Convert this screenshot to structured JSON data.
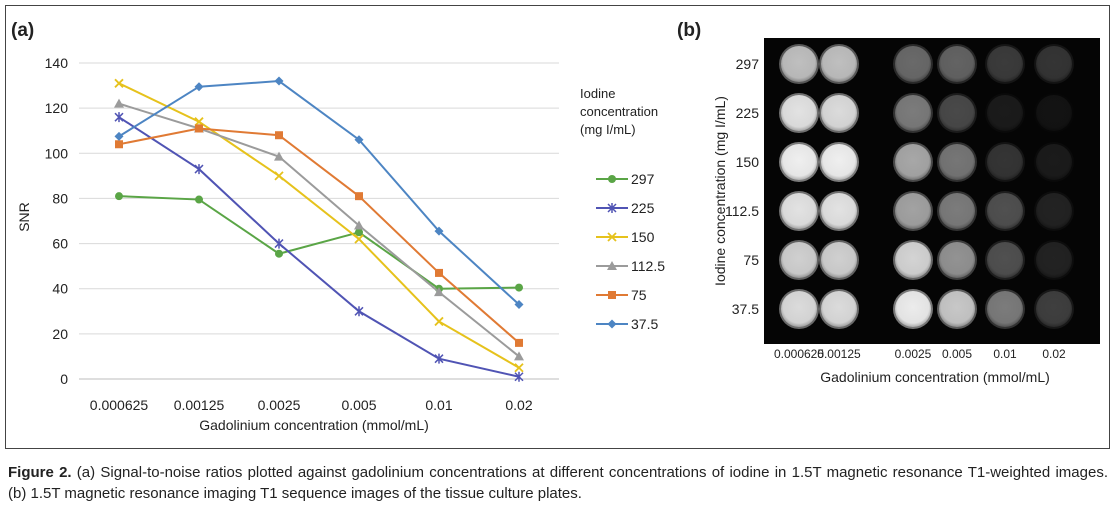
{
  "panel_a_label": "(a)",
  "panel_b_label": "(b)",
  "chart_data": {
    "type": "line",
    "title": "",
    "xlabel": "Gadolinium concentration (mmol/mL)",
    "ylabel": "SNR",
    "categories": [
      "0.000625",
      "0.00125",
      "0.0025",
      "0.005",
      "0.01",
      "0.02"
    ],
    "ylim": [
      0,
      140
    ],
    "yticks": [
      0,
      20,
      40,
      60,
      80,
      100,
      120,
      140
    ],
    "grid": true,
    "legend_title": "Iodine concentration (mg I/mL)",
    "legend_title_lines": [
      "Iodine",
      "concentration",
      "(mg I/mL)"
    ],
    "legend_position": "right",
    "series": [
      {
        "name": "297",
        "color": "#5aa546",
        "marker": "circle",
        "values": [
          81,
          79.5,
          55.5,
          65,
          40,
          40.5
        ]
      },
      {
        "name": "225",
        "color": "#5054b4",
        "marker": "star",
        "values": [
          116,
          93,
          60,
          30,
          9,
          1
        ]
      },
      {
        "name": "150",
        "color": "#e6c21c",
        "marker": "x",
        "values": [
          131,
          114,
          90,
          62,
          25.5,
          5
        ]
      },
      {
        "name": "112.5",
        "color": "#9b9b9b",
        "marker": "triangle",
        "values": [
          122,
          111,
          98.5,
          68,
          38.5,
          10
        ]
      },
      {
        "name": "75",
        "color": "#e07a34",
        "marker": "square",
        "values": [
          104,
          111,
          108,
          81,
          47,
          16
        ]
      },
      {
        "name": "37.5",
        "color": "#4d85c3",
        "marker": "diamond",
        "values": [
          107.5,
          129.5,
          132,
          106,
          65.5,
          33
        ]
      }
    ]
  },
  "panel_b": {
    "ylabel": "Iodine concentration (mg I/mL)",
    "xlabel": "Gadolinium concentration (mmol/mL)",
    "row_labels": [
      "297",
      "225",
      "150",
      "112.5",
      "75",
      "37.5"
    ],
    "col_labels": [
      "0.000625",
      "0.00125",
      "0.0025",
      "0.005",
      "0.01",
      "0.02"
    ],
    "brightness": [
      [
        0.62,
        0.62,
        0.3,
        0.28,
        0.16,
        0.14
      ],
      [
        0.8,
        0.76,
        0.36,
        0.2,
        0.07,
        0.05
      ],
      [
        0.88,
        0.88,
        0.52,
        0.34,
        0.14,
        0.07
      ],
      [
        0.8,
        0.8,
        0.5,
        0.36,
        0.22,
        0.09
      ],
      [
        0.7,
        0.7,
        0.72,
        0.44,
        0.22,
        0.09
      ],
      [
        0.76,
        0.76,
        0.86,
        0.66,
        0.36,
        0.17
      ]
    ]
  },
  "caption": {
    "label": "Figure 2.",
    "text": " (a) Signal-to-noise ratios plotted against gadolinium concentrations at different concentrations of iodine in 1.5T magnetic resonance T1-weighted images. (b) 1.5T magnetic resonance imaging T1 sequence images of the tissue culture plates."
  }
}
